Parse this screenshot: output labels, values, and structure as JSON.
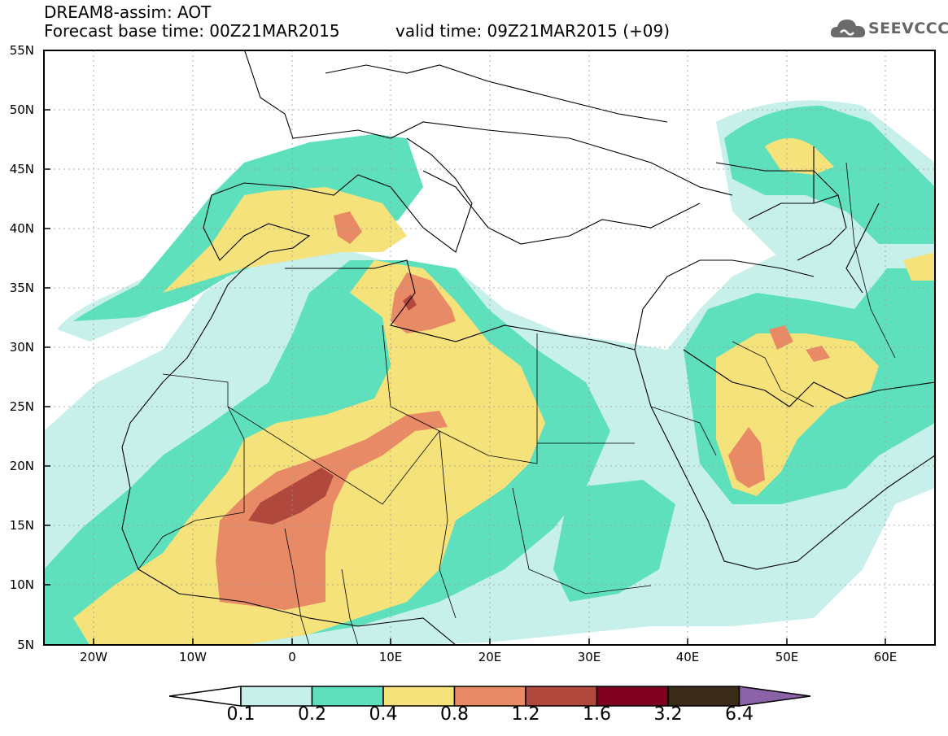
{
  "header": {
    "line1": "DREAM8-assim: AOT",
    "line2_left": "Forecast base time: 00Z21MAR2015",
    "line2_right": "valid time: 09Z21MAR2015 (+09)"
  },
  "logo": {
    "text": "SEEVCCC",
    "icon": "cloud-icon"
  },
  "map": {
    "lon_range": [
      -25,
      65
    ],
    "lat_range": [
      5,
      55
    ],
    "lat_labels": [
      "55N",
      "50N",
      "45N",
      "40N",
      "35N",
      "30N",
      "25N",
      "20N",
      "15N",
      "10N",
      "5N"
    ],
    "lon_labels": [
      "20W",
      "10W",
      "0",
      "10E",
      "20E",
      "30E",
      "40E",
      "50E",
      "60E"
    ]
  },
  "colorbar": {
    "labels": [
      "0.1",
      "0.2",
      "0.4",
      "0.8",
      "1.2",
      "1.6",
      "3.2",
      "6.4"
    ],
    "colors": [
      "#ffffff",
      "#c8f0ea",
      "#5ee0bc",
      "#f5e27a",
      "#e98a66",
      "#b0483e",
      "#800020",
      "#3a2a18",
      "#8a62a8"
    ]
  }
}
